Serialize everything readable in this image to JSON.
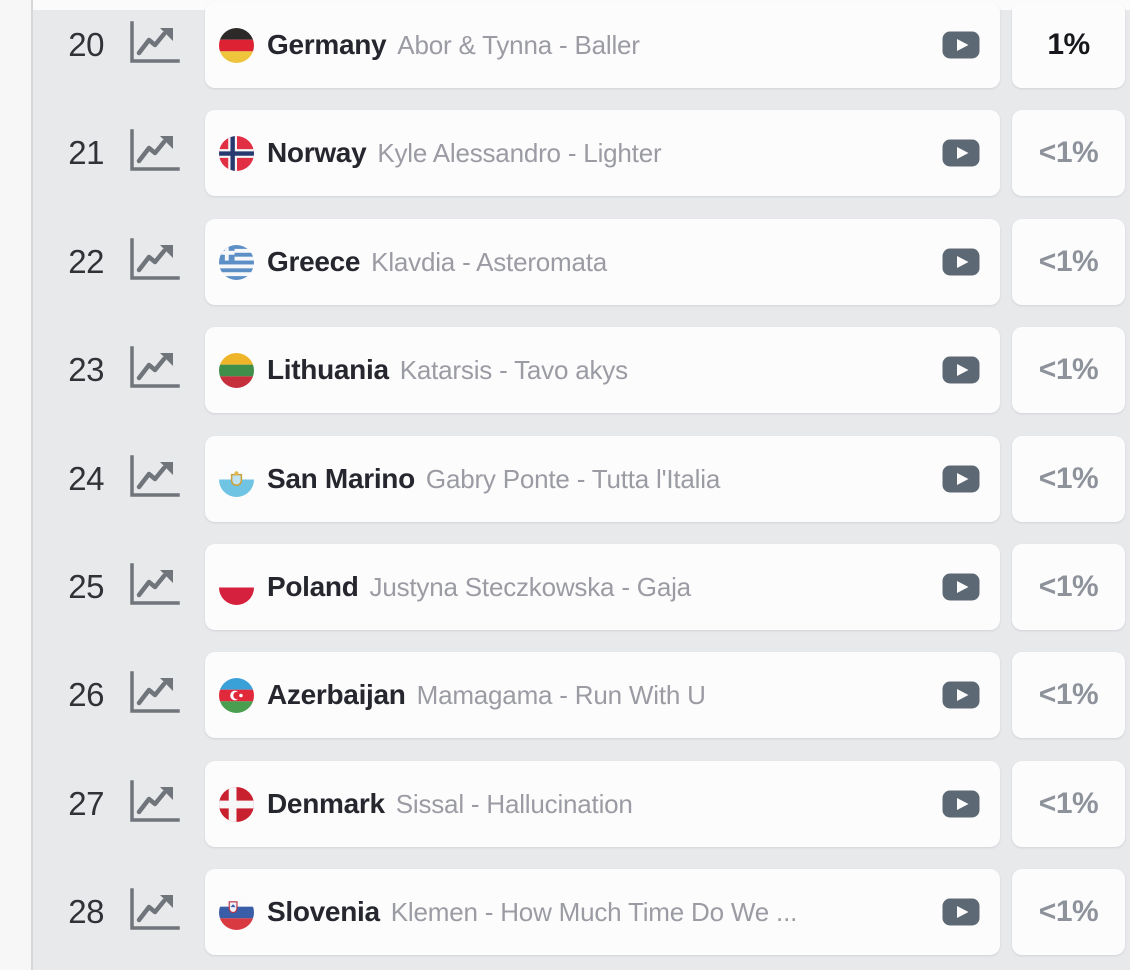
{
  "list": {
    "columns": {
      "rank": "rank",
      "trend_icon": "line-chart-icon",
      "video_icon": "youtube-play-icon",
      "percent": "winning-chance"
    },
    "rows": [
      {
        "rank": "20",
        "flag": "germany",
        "country": "Germany",
        "entry": "Abor & Tynna - Baller",
        "percent": "1%",
        "percent_strong": true
      },
      {
        "rank": "21",
        "flag": "norway",
        "country": "Norway",
        "entry": "Kyle Alessandro - Lighter",
        "percent": "<1%",
        "percent_strong": false
      },
      {
        "rank": "22",
        "flag": "greece",
        "country": "Greece",
        "entry": "Klavdia - Asteromata",
        "percent": "<1%",
        "percent_strong": false
      },
      {
        "rank": "23",
        "flag": "lithuania",
        "country": "Lithuania",
        "entry": "Katarsis - Tavo akys",
        "percent": "<1%",
        "percent_strong": false
      },
      {
        "rank": "24",
        "flag": "san-marino",
        "country": "San Marino",
        "entry": "Gabry Ponte - Tutta l'Italia",
        "percent": "<1%",
        "percent_strong": false
      },
      {
        "rank": "25",
        "flag": "poland",
        "country": "Poland",
        "entry": "Justyna Steczkowska - Gaja",
        "percent": "<1%",
        "percent_strong": false
      },
      {
        "rank": "26",
        "flag": "azerbaijan",
        "country": "Azerbaijan",
        "entry": "Mamagama - Run With U",
        "percent": "<1%",
        "percent_strong": false
      },
      {
        "rank": "27",
        "flag": "denmark",
        "country": "Denmark",
        "entry": "Sissal - Hallucination",
        "percent": "<1%",
        "percent_strong": false
      },
      {
        "rank": "28",
        "flag": "slovenia",
        "country": "Slovenia",
        "entry": "Klemen - How Much Time Do We ...",
        "percent": "<1%",
        "percent_strong": false
      }
    ]
  },
  "colors": {
    "background": "#e8e9eb",
    "card": "#fcfcfd",
    "rank_text": "#303237",
    "country_text": "#26272e",
    "entry_text": "#9b9ca3",
    "icon_gray": "#70747b",
    "youtube_slate": "#5c6873",
    "percent_strong": "#17181c",
    "percent_muted": "#8e939b"
  }
}
